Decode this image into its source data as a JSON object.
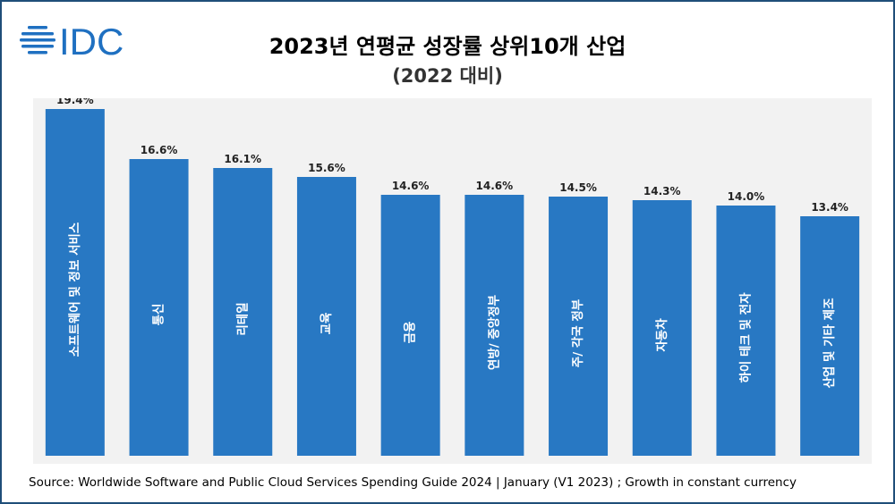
{
  "brand": {
    "logo_text": "IDC",
    "logo_color": "#1f70c1"
  },
  "title": "2023년 연평균 성장률 상위10개 산업",
  "subtitle": "(2022 대비)",
  "source": "Source: Worldwide Software and Public Cloud Services Spending Guide 2024 | January (V1 2023) ; Growth in constant currency",
  "colors": {
    "bar": "#2878c3",
    "plot_bg": "#f2f2f2",
    "label": "#222222"
  },
  "chart_data": {
    "type": "bar",
    "categories": [
      "소프트웨어 및 정보 서비스",
      "통신",
      "리테일",
      "교육",
      "금융",
      "연방/ 중앙정부",
      "주/ 각국 정부",
      "자동차",
      "하이 테크 및 전자",
      "산업 및 기타 제조"
    ],
    "values": [
      19.4,
      16.6,
      16.1,
      15.6,
      14.6,
      14.6,
      14.5,
      14.3,
      14.0,
      13.4
    ],
    "value_labels": [
      "19.4%",
      "16.6%",
      "16.1%",
      "15.6%",
      "14.6%",
      "14.6%",
      "14.5%",
      "14.3%",
      "14.0%",
      "13.4%"
    ],
    "ylim": [
      0,
      20
    ],
    "grid": false,
    "legend": "none"
  }
}
